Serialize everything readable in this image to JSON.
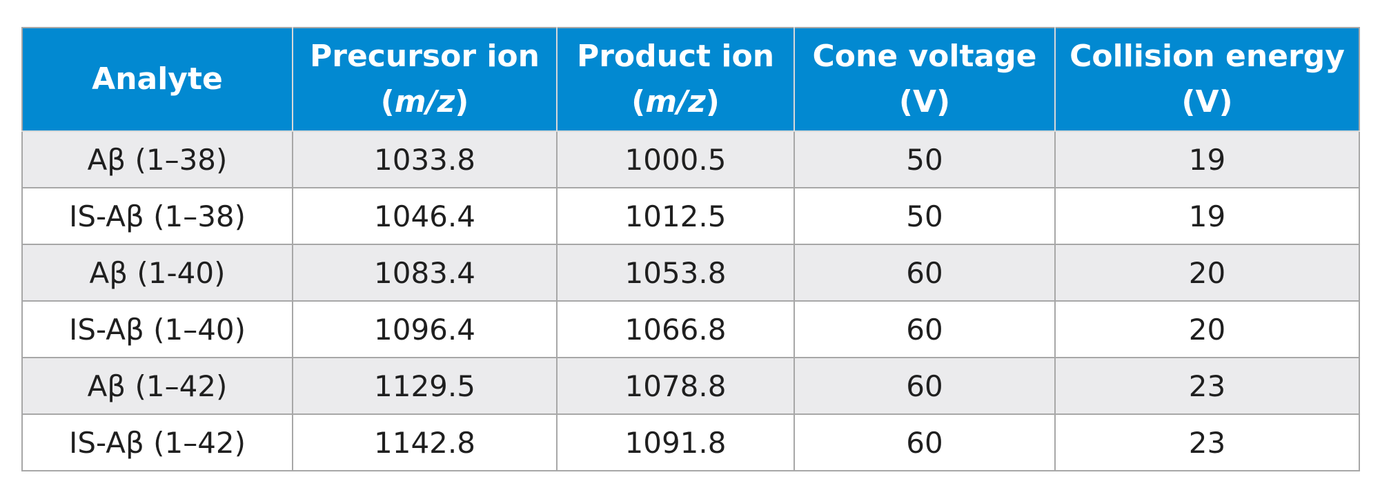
{
  "table": {
    "headers": [
      {
        "line1": "Analyte",
        "line2": ""
      },
      {
        "line1": "Precursor ion",
        "line2_pre": "(",
        "line2_ital": "m/z",
        "line2_post": ")"
      },
      {
        "line1": "Product ion",
        "line2_pre": "(",
        "line2_ital": "m/z",
        "line2_post": ")"
      },
      {
        "line1": "Cone voltage",
        "line2": "(V)"
      },
      {
        "line1": "Collision energy",
        "line2": "(V)"
      }
    ],
    "rows": [
      {
        "analyte": "Aβ (1–38)",
        "precursor": "1033.8",
        "product": "1000.5",
        "cone": "50",
        "collision": "19"
      },
      {
        "analyte": "IS-Aβ (1–38)",
        "precursor": "1046.4",
        "product": "1012.5",
        "cone": "50",
        "collision": "19"
      },
      {
        "analyte": "Aβ (1-40)",
        "precursor": "1083.4",
        "product": "1053.8",
        "cone": "60",
        "collision": "20"
      },
      {
        "analyte": "IS-Aβ (1–40)",
        "precursor": "1096.4",
        "product": "1066.8",
        "cone": "60",
        "collision": "20"
      },
      {
        "analyte": "Aβ (1–42)",
        "precursor": "1129.5",
        "product": "1078.8",
        "cone": "60",
        "collision": "23"
      },
      {
        "analyte": "IS-Aβ (1–42)",
        "precursor": "1142.8",
        "product": "1091.8",
        "cone": "60",
        "collision": "23"
      }
    ]
  },
  "colors": {
    "header_bg": "#0289d1",
    "header_text": "#ffffff",
    "row_alt_bg": "#ebebed",
    "border": "#a7a7a7"
  }
}
